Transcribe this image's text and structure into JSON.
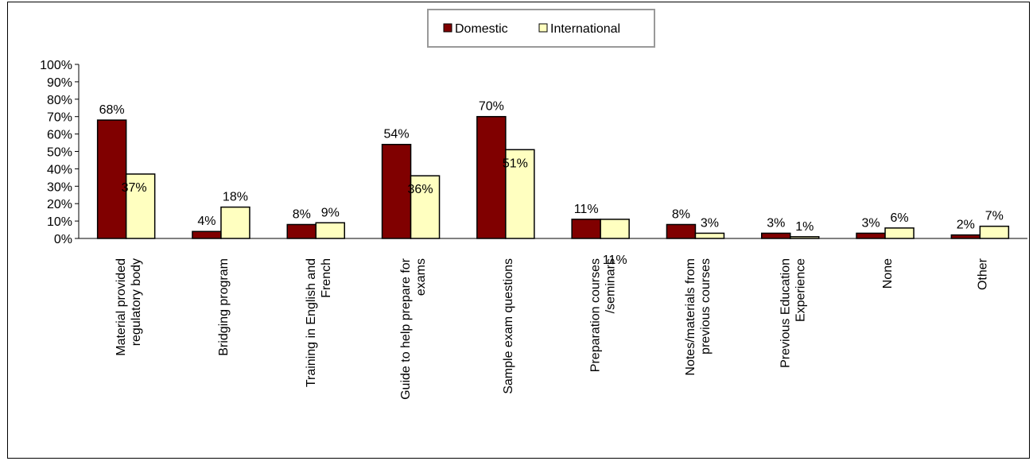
{
  "chart_data": {
    "type": "bar",
    "title": "",
    "xlabel": "",
    "ylabel": "",
    "ylim": [
      0,
      100
    ],
    "y_ticks": [
      "0%",
      "10%",
      "20%",
      "30%",
      "40%",
      "50%",
      "60%",
      "70%",
      "80%",
      "90%",
      "100%"
    ],
    "categories": [
      [
        "Material provided",
        "regulatory body"
      ],
      [
        "Bridging program"
      ],
      [
        "Training in English and",
        "French"
      ],
      [
        "Guide to help prepare for",
        "exams"
      ],
      [
        "Sample exam questions"
      ],
      [
        "Preparation courses",
        "/seminars"
      ],
      [
        "Notes/materials from",
        "previous courses"
      ],
      [
        "Previous Education",
        "Experience"
      ],
      [
        "None"
      ],
      [
        "Other"
      ]
    ],
    "series": [
      {
        "name": "Domestic",
        "color": "#800000",
        "values": [
          68,
          4,
          8,
          54,
          70,
          11,
          8,
          3,
          3,
          2
        ],
        "labels": [
          "68%",
          "4%",
          "8%",
          "54%",
          "70%",
          "11%",
          "8%",
          "3%",
          "3%",
          "2%"
        ]
      },
      {
        "name": "International",
        "color": "#FFFFC0",
        "values": [
          37,
          18,
          9,
          36,
          51,
          11,
          3,
          1,
          6,
          7
        ],
        "labels": [
          "37%",
          "18%",
          "9%",
          "36%",
          "51%",
          "11%",
          "3%",
          "1%",
          "6%",
          "7%"
        ]
      }
    ],
    "grid": false,
    "legend_position": "top-center"
  }
}
